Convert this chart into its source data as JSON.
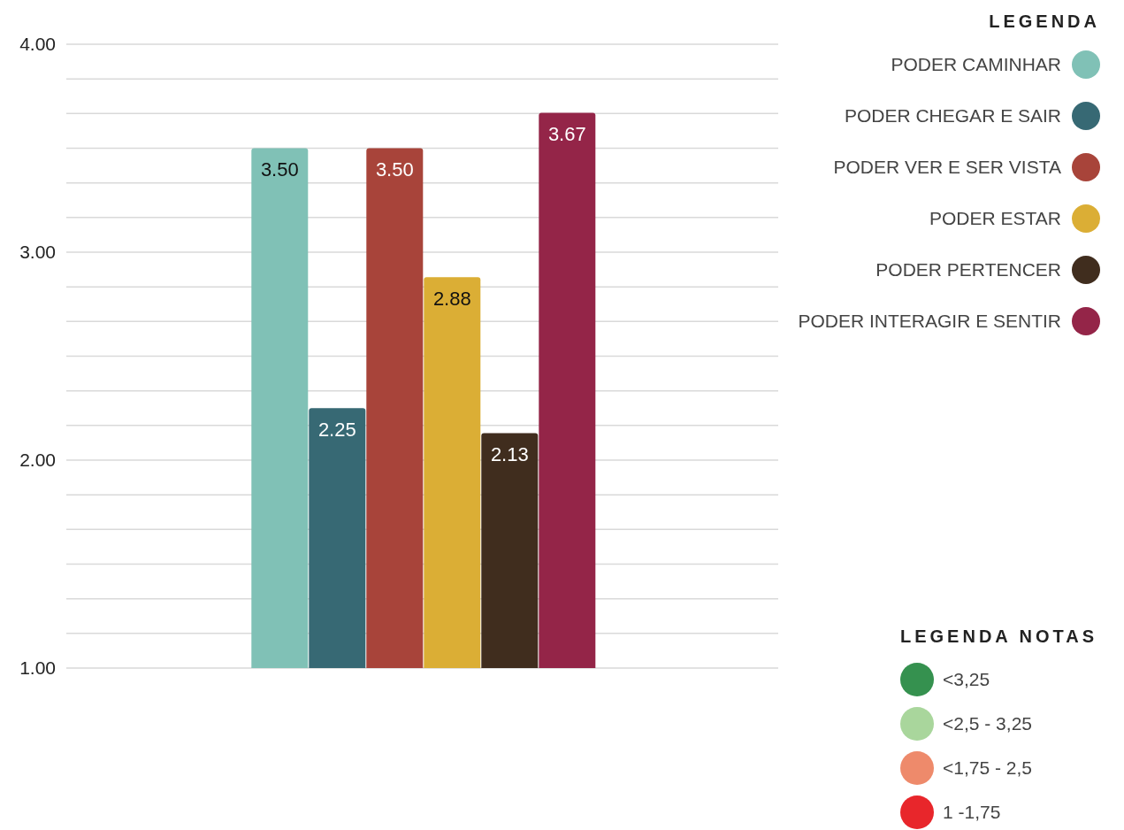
{
  "chart_data": {
    "type": "bar",
    "categories": [
      null
    ],
    "series": [
      {
        "name": "PODER CAMINHAR",
        "color": "#80c1b6",
        "values": [
          3.5
        ],
        "value_labels": [
          "3.50"
        ]
      },
      {
        "name": "PODER CHEGAR E SAIR",
        "color": "#376974",
        "values": [
          2.25
        ],
        "value_labels": [
          "2.25"
        ]
      },
      {
        "name": "PODER VER E SER VISTA",
        "color": "#a8443a",
        "values": [
          3.5
        ],
        "value_labels": [
          "3.50"
        ]
      },
      {
        "name": "PODER ESTAR",
        "color": "#dbae35",
        "values": [
          2.88
        ],
        "value_labels": [
          "2.88"
        ]
      },
      {
        "name": "PODER PERTENCER",
        "color": "#402d1e",
        "values": [
          2.13
        ],
        "value_labels": [
          "2.13"
        ]
      },
      {
        "name": "PODER INTERAGIR E SENTIR",
        "color": "#942548",
        "values": [
          3.67
        ],
        "value_labels": [
          "3.67"
        ]
      }
    ],
    "ylim": [
      1,
      4
    ],
    "yticks": [
      {
        "value": 1,
        "label": "1.00"
      },
      {
        "value": 1.167,
        "label": null
      },
      {
        "value": 1.333,
        "label": null
      },
      {
        "value": 1.5,
        "label": null
      },
      {
        "value": 1.667,
        "label": null
      },
      {
        "value": 1.833,
        "label": null
      },
      {
        "value": 2,
        "label": "2.00"
      },
      {
        "value": 2.167,
        "label": null
      },
      {
        "value": 2.333,
        "label": null
      },
      {
        "value": 2.5,
        "label": null
      },
      {
        "value": 2.667,
        "label": null
      },
      {
        "value": 2.833,
        "label": null
      },
      {
        "value": 3,
        "label": "3.00"
      },
      {
        "value": 3.167,
        "label": null
      },
      {
        "value": 3.333,
        "label": null
      },
      {
        "value": 3.5,
        "label": null
      },
      {
        "value": 3.667,
        "label": null
      },
      {
        "value": 3.833,
        "label": null
      },
      {
        "value": 4,
        "label": "4.00"
      }
    ],
    "grid": "y",
    "legend": "top right",
    "legend_title": "LEGENDA",
    "annotations": [
      "LEGENDA NOTAS",
      "<3,25",
      "<2,5 - 3,25",
      "<1,75 - 2,5",
      "1 -1,75"
    ]
  }
}
